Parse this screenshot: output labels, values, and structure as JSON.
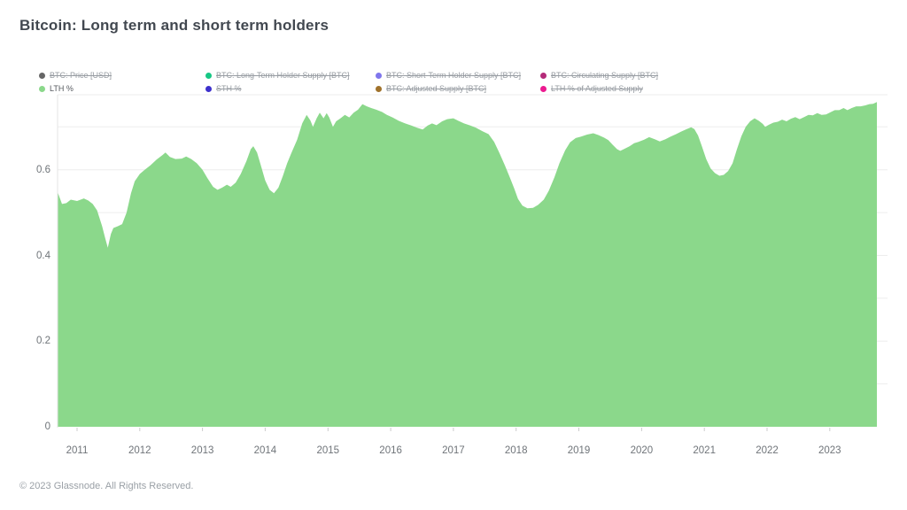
{
  "title": "Bitcoin: Long term and short term holders",
  "footer": "© 2023 Glassnode. All Rights Reserved.",
  "colors": {
    "area_fill": "#8bd88b",
    "gridline": "#ededed",
    "axis_line": "#e4e4e4",
    "tick": "#cccccc",
    "title_text": "#424850",
    "axis_text": "#6f7479",
    "legend_inactive_text": "#979ca2",
    "legend_active_text": "#55595e"
  },
  "legend": {
    "items": [
      {
        "label": "BTC: Price [USD]",
        "color": "#666666",
        "active": false,
        "row": 0,
        "col": 0
      },
      {
        "label": "BTC: Long-Term Holder Supply [BTC]",
        "color": "#16c784",
        "active": false,
        "row": 0,
        "col": 1
      },
      {
        "label": "BTC: Short-Term Holder Supply [BTC]",
        "color": "#7f76ec",
        "active": false,
        "row": 0,
        "col": 2
      },
      {
        "label": "BTC: Circulating Supply [BTC]",
        "color": "#b42a79",
        "active": false,
        "row": 0,
        "col": 3
      },
      {
        "label": "LTH %",
        "color": "#8bd88b",
        "active": true,
        "row": 1,
        "col": 0
      },
      {
        "label": "STH %",
        "color": "#3d30cc",
        "active": false,
        "row": 1,
        "col": 1
      },
      {
        "label": "BTC: Adjusted Supply [BTC]",
        "color": "#a0722b",
        "active": false,
        "row": 1,
        "col": 2
      },
      {
        "label": "LTH % of Adjusted Supply",
        "color": "#ec1a90",
        "active": false,
        "row": 1,
        "col": 3
      }
    ]
  },
  "chart_data": {
    "type": "area",
    "title": "Bitcoin: Long term and short term holders",
    "xlabel": "",
    "ylabel": "",
    "legend_position": "top",
    "grid": true,
    "xlim": [
      2010.69,
      2023.92
    ],
    "ylim": [
      0,
      0.775
    ],
    "x_ticks": [
      2011,
      2012,
      2013,
      2014,
      2015,
      2016,
      2017,
      2018,
      2019,
      2020,
      2021,
      2022,
      2023
    ],
    "y_ticks": [
      0,
      0.2,
      0.4,
      0.6
    ],
    "y_gridlines": [
      0.1,
      0.2,
      0.3,
      0.4,
      0.5,
      0.6,
      0.7
    ],
    "series": [
      {
        "name": "LTH %",
        "color": "#8bd88b",
        "points": [
          [
            2010.69,
            0.548
          ],
          [
            2010.76,
            0.52
          ],
          [
            2010.83,
            0.522
          ],
          [
            2010.9,
            0.53
          ],
          [
            2011.0,
            0.527
          ],
          [
            2011.11,
            0.533
          ],
          [
            2011.18,
            0.528
          ],
          [
            2011.25,
            0.52
          ],
          [
            2011.32,
            0.505
          ],
          [
            2011.4,
            0.468
          ],
          [
            2011.45,
            0.44
          ],
          [
            2011.49,
            0.418
          ],
          [
            2011.54,
            0.45
          ],
          [
            2011.58,
            0.464
          ],
          [
            2011.65,
            0.468
          ],
          [
            2011.72,
            0.473
          ],
          [
            2011.79,
            0.5
          ],
          [
            2011.86,
            0.545
          ],
          [
            2011.92,
            0.573
          ],
          [
            2012.0,
            0.59
          ],
          [
            2012.08,
            0.6
          ],
          [
            2012.17,
            0.61
          ],
          [
            2012.27,
            0.624
          ],
          [
            2012.36,
            0.634
          ],
          [
            2012.41,
            0.64
          ],
          [
            2012.48,
            0.63
          ],
          [
            2012.57,
            0.625
          ],
          [
            2012.67,
            0.626
          ],
          [
            2012.74,
            0.631
          ],
          [
            2012.82,
            0.625
          ],
          [
            2012.91,
            0.615
          ],
          [
            2013.0,
            0.6
          ],
          [
            2013.08,
            0.58
          ],
          [
            2013.17,
            0.56
          ],
          [
            2013.24,
            0.553
          ],
          [
            2013.31,
            0.558
          ],
          [
            2013.39,
            0.565
          ],
          [
            2013.45,
            0.56
          ],
          [
            2013.53,
            0.57
          ],
          [
            2013.61,
            0.59
          ],
          [
            2013.7,
            0.62
          ],
          [
            2013.77,
            0.648
          ],
          [
            2013.81,
            0.655
          ],
          [
            2013.87,
            0.64
          ],
          [
            2013.92,
            0.615
          ],
          [
            2014.0,
            0.575
          ],
          [
            2014.07,
            0.553
          ],
          [
            2014.14,
            0.545
          ],
          [
            2014.21,
            0.558
          ],
          [
            2014.28,
            0.585
          ],
          [
            2014.35,
            0.615
          ],
          [
            2014.42,
            0.64
          ],
          [
            2014.51,
            0.67
          ],
          [
            2014.59,
            0.708
          ],
          [
            2014.66,
            0.728
          ],
          [
            2014.72,
            0.715
          ],
          [
            2014.76,
            0.7
          ],
          [
            2014.82,
            0.72
          ],
          [
            2014.87,
            0.733
          ],
          [
            2014.93,
            0.72
          ],
          [
            2014.98,
            0.732
          ],
          [
            2015.02,
            0.722
          ],
          [
            2015.08,
            0.7
          ],
          [
            2015.13,
            0.713
          ],
          [
            2015.2,
            0.72
          ],
          [
            2015.27,
            0.728
          ],
          [
            2015.34,
            0.722
          ],
          [
            2015.41,
            0.733
          ],
          [
            2015.48,
            0.74
          ],
          [
            2015.55,
            0.753
          ],
          [
            2015.62,
            0.748
          ],
          [
            2015.69,
            0.744
          ],
          [
            2015.77,
            0.74
          ],
          [
            2015.86,
            0.735
          ],
          [
            2015.94,
            0.728
          ],
          [
            2016.03,
            0.722
          ],
          [
            2016.13,
            0.714
          ],
          [
            2016.23,
            0.708
          ],
          [
            2016.33,
            0.703
          ],
          [
            2016.42,
            0.698
          ],
          [
            2016.51,
            0.694
          ],
          [
            2016.59,
            0.703
          ],
          [
            2016.66,
            0.708
          ],
          [
            2016.73,
            0.704
          ],
          [
            2016.82,
            0.713
          ],
          [
            2016.9,
            0.718
          ],
          [
            2017.0,
            0.72
          ],
          [
            2017.08,
            0.714
          ],
          [
            2017.17,
            0.708
          ],
          [
            2017.27,
            0.703
          ],
          [
            2017.36,
            0.698
          ],
          [
            2017.46,
            0.69
          ],
          [
            2017.56,
            0.683
          ],
          [
            2017.65,
            0.665
          ],
          [
            2017.73,
            0.64
          ],
          [
            2017.82,
            0.61
          ],
          [
            2017.9,
            0.582
          ],
          [
            2017.97,
            0.556
          ],
          [
            2018.03,
            0.532
          ],
          [
            2018.1,
            0.516
          ],
          [
            2018.18,
            0.51
          ],
          [
            2018.27,
            0.511
          ],
          [
            2018.35,
            0.518
          ],
          [
            2018.44,
            0.53
          ],
          [
            2018.52,
            0.551
          ],
          [
            2018.61,
            0.582
          ],
          [
            2018.69,
            0.615
          ],
          [
            2018.78,
            0.645
          ],
          [
            2018.86,
            0.664
          ],
          [
            2018.95,
            0.674
          ],
          [
            2019.03,
            0.677
          ],
          [
            2019.13,
            0.682
          ],
          [
            2019.23,
            0.685
          ],
          [
            2019.31,
            0.681
          ],
          [
            2019.4,
            0.675
          ],
          [
            2019.47,
            0.669
          ],
          [
            2019.54,
            0.658
          ],
          [
            2019.61,
            0.648
          ],
          [
            2019.66,
            0.644
          ],
          [
            2019.73,
            0.649
          ],
          [
            2019.81,
            0.655
          ],
          [
            2019.88,
            0.662
          ],
          [
            2019.95,
            0.665
          ],
          [
            2020.04,
            0.67
          ],
          [
            2020.12,
            0.676
          ],
          [
            2020.21,
            0.671
          ],
          [
            2020.29,
            0.666
          ],
          [
            2020.38,
            0.671
          ],
          [
            2020.46,
            0.677
          ],
          [
            2020.55,
            0.683
          ],
          [
            2020.63,
            0.689
          ],
          [
            2020.72,
            0.695
          ],
          [
            2020.79,
            0.699
          ],
          [
            2020.84,
            0.695
          ],
          [
            2020.9,
            0.68
          ],
          [
            2020.96,
            0.655
          ],
          [
            2021.03,
            0.625
          ],
          [
            2021.1,
            0.603
          ],
          [
            2021.17,
            0.592
          ],
          [
            2021.24,
            0.586
          ],
          [
            2021.31,
            0.588
          ],
          [
            2021.38,
            0.597
          ],
          [
            2021.45,
            0.615
          ],
          [
            2021.52,
            0.648
          ],
          [
            2021.59,
            0.678
          ],
          [
            2021.66,
            0.7
          ],
          [
            2021.73,
            0.713
          ],
          [
            2021.8,
            0.72
          ],
          [
            2021.87,
            0.714
          ],
          [
            2021.93,
            0.707
          ],
          [
            2021.97,
            0.7
          ],
          [
            2022.03,
            0.705
          ],
          [
            2022.1,
            0.71
          ],
          [
            2022.17,
            0.712
          ],
          [
            2022.24,
            0.717
          ],
          [
            2022.31,
            0.713
          ],
          [
            2022.38,
            0.719
          ],
          [
            2022.45,
            0.723
          ],
          [
            2022.52,
            0.718
          ],
          [
            2022.59,
            0.723
          ],
          [
            2022.66,
            0.728
          ],
          [
            2022.73,
            0.727
          ],
          [
            2022.8,
            0.732
          ],
          [
            2022.87,
            0.728
          ],
          [
            2022.94,
            0.729
          ],
          [
            2023.01,
            0.734
          ],
          [
            2023.08,
            0.739
          ],
          [
            2023.15,
            0.739
          ],
          [
            2023.22,
            0.744
          ],
          [
            2023.28,
            0.739
          ],
          [
            2023.35,
            0.744
          ],
          [
            2023.42,
            0.748
          ],
          [
            2023.49,
            0.748
          ],
          [
            2023.56,
            0.75
          ],
          [
            2023.63,
            0.753
          ],
          [
            2023.69,
            0.754
          ],
          [
            2023.75,
            0.758
          ]
        ]
      }
    ]
  }
}
